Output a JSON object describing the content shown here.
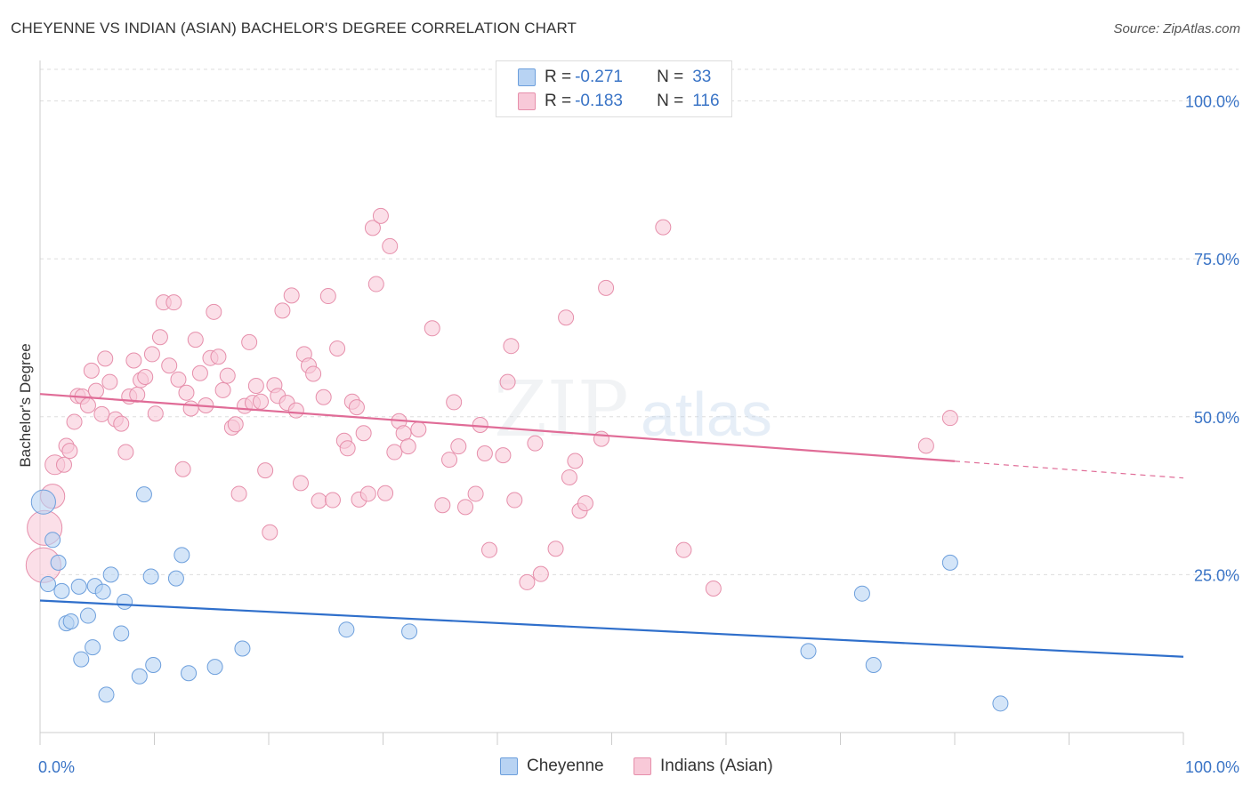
{
  "header": {
    "title": "CHEYENNE VS INDIAN (ASIAN) BACHELOR'S DEGREE CORRELATION CHART",
    "source": "Source: ZipAtlas.com"
  },
  "watermark": {
    "zip": "ZIP",
    "atlas": "atlas"
  },
  "legend_top": {
    "rows": [
      {
        "r_label": "R =",
        "r_value": "-0.271",
        "n_label": "N =",
        "n_value": "33"
      },
      {
        "r_label": "R =",
        "r_value": "-0.183",
        "n_label": "N =",
        "n_value": "116"
      }
    ]
  },
  "legend_bottom": {
    "items": [
      "Cheyenne",
      "Indians (Asian)"
    ]
  },
  "colors": {
    "cheyenne_fill": "#b8d3f3",
    "cheyenne_stroke": "#6d9fdc",
    "cheyenne_line": "#2f6fcb",
    "indian_fill": "#f8c9d8",
    "indian_stroke": "#e68fab",
    "indian_line": "#e06c97",
    "tick_label": "#3a74c6",
    "grid": "#dddddd"
  },
  "chart_data": {
    "type": "scatter",
    "title": "CHEYENNE VS INDIAN (ASIAN) BACHELOR'S DEGREE CORRELATION CHART",
    "xlabel": "",
    "ylabel": "Bachelor's Degree",
    "xlim": [
      0,
      100
    ],
    "ylim": [
      0,
      105
    ],
    "x_tick_labels": [
      "0.0%",
      "100.0%"
    ],
    "y_ticks": [
      25,
      50,
      75,
      100
    ],
    "y_tick_labels": [
      "25.0%",
      "50.0%",
      "75.0%",
      "100.0%"
    ],
    "grid": true,
    "legend_position": "top-center",
    "series": [
      {
        "name": "Cheyenne",
        "R": -0.271,
        "N": 33,
        "trend": {
          "x": [
            0,
            100
          ],
          "y": [
            20.9,
            12.0
          ],
          "dashed_from": null
        },
        "points": [
          [
            0.3,
            36.5,
            1.6
          ],
          [
            0.7,
            23.5,
            1
          ],
          [
            1.1,
            30.5,
            1
          ],
          [
            1.6,
            26.9,
            1
          ],
          [
            1.9,
            22.4,
            1
          ],
          [
            2.3,
            17.3,
            1
          ],
          [
            2.7,
            17.6,
            1
          ],
          [
            3.4,
            23.1,
            1
          ],
          [
            3.6,
            11.6,
            1
          ],
          [
            4.2,
            18.5,
            1
          ],
          [
            4.6,
            13.5,
            1
          ],
          [
            4.8,
            23.2,
            1
          ],
          [
            5.5,
            22.3,
            1
          ],
          [
            5.8,
            6.0,
            1
          ],
          [
            6.2,
            25.0,
            1
          ],
          [
            7.1,
            15.7,
            1
          ],
          [
            7.4,
            20.7,
            1
          ],
          [
            8.7,
            8.9,
            1
          ],
          [
            9.1,
            37.7,
            1
          ],
          [
            9.7,
            24.7,
            1
          ],
          [
            9.9,
            10.7,
            1
          ],
          [
            11.9,
            24.4,
            1
          ],
          [
            12.4,
            28.1,
            1
          ],
          [
            13.0,
            9.4,
            1
          ],
          [
            15.3,
            10.4,
            1
          ],
          [
            17.7,
            13.3,
            1
          ],
          [
            26.8,
            16.3,
            1
          ],
          [
            32.3,
            16.0,
            1
          ],
          [
            67.2,
            12.9,
            1
          ],
          [
            71.9,
            22.0,
            1
          ],
          [
            72.9,
            10.7,
            1
          ],
          [
            79.6,
            26.9,
            1
          ],
          [
            84.0,
            4.6,
            1
          ]
        ]
      },
      {
        "name": "Indians (Asian)",
        "R": -0.183,
        "N": 116,
        "trend": {
          "x": [
            0,
            100
          ],
          "y": [
            53.6,
            40.3
          ],
          "dashed_from": 80
        },
        "points": [
          [
            0.3,
            26.5,
            2.3
          ],
          [
            0.4,
            32.4,
            2.3
          ],
          [
            1.1,
            37.4,
            1.6
          ],
          [
            1.3,
            42.4,
            1.3
          ],
          [
            2.1,
            42.4,
            1
          ],
          [
            2.3,
            45.4,
            1
          ],
          [
            2.6,
            44.6,
            1
          ],
          [
            3.0,
            49.2,
            1
          ],
          [
            3.3,
            53.3,
            1
          ],
          [
            3.7,
            53.2,
            1
          ],
          [
            4.2,
            51.8,
            1
          ],
          [
            4.5,
            57.3,
            1
          ],
          [
            4.9,
            54.1,
            1
          ],
          [
            5.4,
            50.4,
            1
          ],
          [
            5.7,
            59.2,
            1
          ],
          [
            6.1,
            55.5,
            1
          ],
          [
            6.6,
            49.6,
            1
          ],
          [
            7.1,
            48.9,
            1
          ],
          [
            7.5,
            44.4,
            1
          ],
          [
            7.8,
            53.2,
            1
          ],
          [
            8.2,
            58.9,
            1
          ],
          [
            8.5,
            53.5,
            1
          ],
          [
            8.8,
            55.8,
            1
          ],
          [
            9.2,
            56.3,
            1
          ],
          [
            9.8,
            59.9,
            1
          ],
          [
            10.1,
            50.5,
            1
          ],
          [
            10.5,
            62.6,
            1
          ],
          [
            10.8,
            68.1,
            1
          ],
          [
            11.3,
            58.1,
            1
          ],
          [
            11.7,
            68.1,
            1
          ],
          [
            12.1,
            55.9,
            1
          ],
          [
            12.5,
            41.7,
            1
          ],
          [
            12.8,
            53.8,
            1
          ],
          [
            13.2,
            51.3,
            1
          ],
          [
            13.6,
            62.2,
            1
          ],
          [
            14.0,
            56.9,
            1
          ],
          [
            14.5,
            51.8,
            1
          ],
          [
            14.9,
            59.3,
            1
          ],
          [
            15.2,
            66.6,
            1
          ],
          [
            15.6,
            59.5,
            1
          ],
          [
            16.0,
            54.2,
            1
          ],
          [
            16.4,
            56.5,
            1
          ],
          [
            16.8,
            48.3,
            1
          ],
          [
            17.1,
            48.8,
            1
          ],
          [
            17.4,
            37.8,
            1
          ],
          [
            17.9,
            51.7,
            1
          ],
          [
            18.3,
            61.8,
            1
          ],
          [
            18.6,
            52.2,
            1
          ],
          [
            18.9,
            54.9,
            1
          ],
          [
            19.3,
            52.4,
            1
          ],
          [
            19.7,
            41.5,
            1
          ],
          [
            20.1,
            31.7,
            1
          ],
          [
            20.5,
            55.0,
            1
          ],
          [
            20.8,
            53.3,
            1
          ],
          [
            21.2,
            66.8,
            1
          ],
          [
            21.6,
            52.2,
            1
          ],
          [
            22.0,
            69.2,
            1
          ],
          [
            22.4,
            51.0,
            1
          ],
          [
            22.8,
            39.5,
            1
          ],
          [
            23.1,
            59.9,
            1
          ],
          [
            23.5,
            58.1,
            1
          ],
          [
            23.9,
            56.8,
            1
          ],
          [
            24.4,
            36.7,
            1
          ],
          [
            24.8,
            53.1,
            1
          ],
          [
            25.2,
            69.1,
            1
          ],
          [
            25.6,
            36.8,
            1
          ],
          [
            26.0,
            60.8,
            1
          ],
          [
            26.6,
            46.2,
            1
          ],
          [
            26.9,
            45.0,
            1
          ],
          [
            27.3,
            52.4,
            1
          ],
          [
            27.7,
            51.5,
            1
          ],
          [
            27.9,
            36.9,
            1
          ],
          [
            28.3,
            47.4,
            1
          ],
          [
            28.7,
            37.8,
            1
          ],
          [
            29.1,
            79.9,
            1
          ],
          [
            29.4,
            71.0,
            1
          ],
          [
            29.8,
            81.8,
            1
          ],
          [
            30.2,
            37.9,
            1
          ],
          [
            30.6,
            77.0,
            1
          ],
          [
            31.0,
            44.4,
            1
          ],
          [
            31.4,
            49.3,
            1
          ],
          [
            31.8,
            47.4,
            1
          ],
          [
            32.2,
            45.3,
            1
          ],
          [
            33.1,
            48.0,
            1
          ],
          [
            34.3,
            64.0,
            1
          ],
          [
            35.2,
            36.0,
            1
          ],
          [
            35.8,
            43.2,
            1
          ],
          [
            36.2,
            52.3,
            1
          ],
          [
            36.6,
            45.3,
            1
          ],
          [
            37.2,
            35.7,
            1
          ],
          [
            38.1,
            37.8,
            1
          ],
          [
            38.5,
            48.7,
            1
          ],
          [
            38.9,
            44.2,
            1
          ],
          [
            39.3,
            28.9,
            1
          ],
          [
            40.5,
            43.9,
            1
          ],
          [
            40.9,
            55.5,
            1
          ],
          [
            41.2,
            61.2,
            1
          ],
          [
            41.5,
            36.8,
            1
          ],
          [
            42.6,
            23.8,
            1
          ],
          [
            43.3,
            45.8,
            1
          ],
          [
            43.8,
            25.1,
            1
          ],
          [
            45.1,
            29.1,
            1
          ],
          [
            46.0,
            65.7,
            1
          ],
          [
            46.3,
            40.4,
            1
          ],
          [
            46.8,
            43.0,
            1
          ],
          [
            47.2,
            35.1,
            1
          ],
          [
            47.7,
            36.3,
            1
          ],
          [
            49.1,
            46.5,
            1
          ],
          [
            49.5,
            70.4,
            1
          ],
          [
            54.5,
            80.0,
            1
          ],
          [
            56.3,
            28.9,
            1
          ],
          [
            58.9,
            22.8,
            1
          ],
          [
            77.5,
            45.4,
            1
          ],
          [
            79.6,
            49.8,
            1
          ]
        ]
      }
    ]
  }
}
